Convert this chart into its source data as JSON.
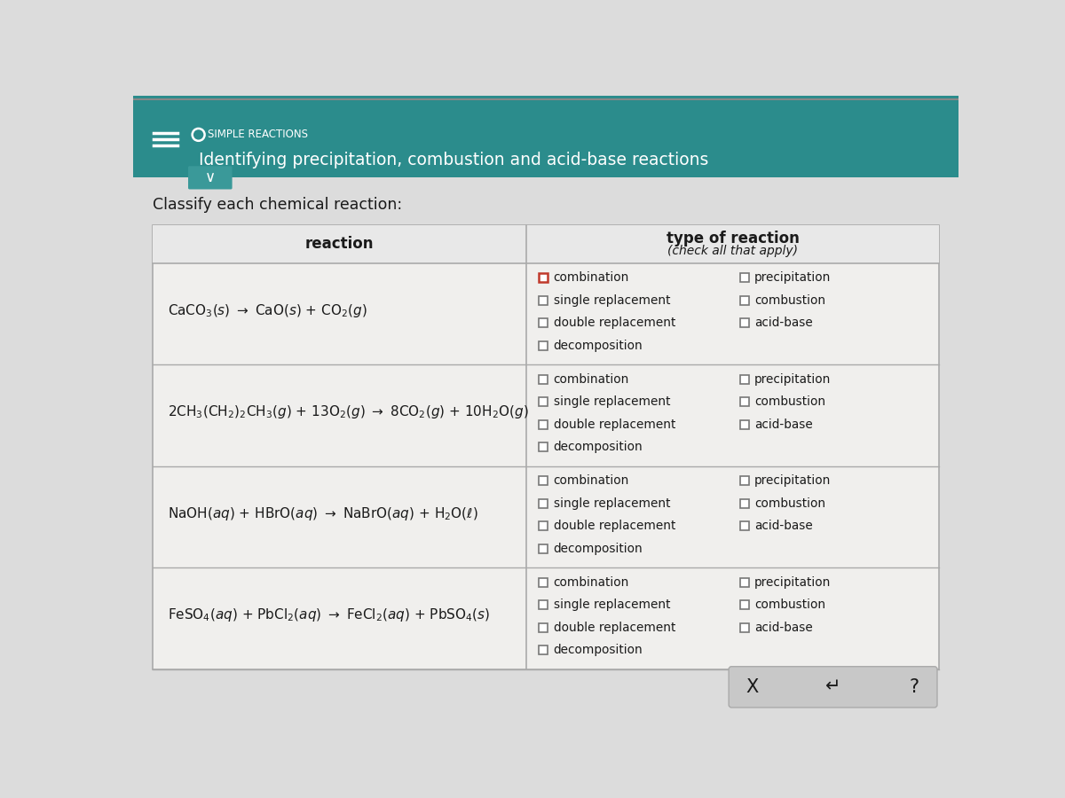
{
  "header_bg": "#2b8c8c",
  "header_text_color": "#ffffff",
  "title_small": "SIMPLE REACTIONS",
  "title_large": "Identifying precipitation, combustion and acid-base reactions",
  "classify_text": "Classify each chemical reaction:",
  "col1_header": "reaction",
  "col2_header_line1": "type of reaction",
  "col2_header_line2": "(check all that apply)",
  "bg_color": "#dcdcdc",
  "table_bg": "#f0efed",
  "table_cell_bg": "#ebebeb",
  "reactions_math": [
    "CaCO$_3$($s$) $\\rightarrow$ CaO($s$) + CO$_2$($g$)",
    "2CH$_3$(CH$_2$)$_2$CH$_3$($g$) + 13O$_2$($g$) $\\rightarrow$ 8CO$_2$($g$) + 10H$_2$O($g$)",
    "NaOH($aq$) + HBrO($aq$) $\\rightarrow$ NaBrO($aq$) + H$_2$O($\\ell$)",
    "FeSO$_4$($aq$) + PbCl$_2$($aq$) $\\rightarrow$ FeCl$_2$($aq$) + PbSO$_4$($s$)"
  ],
  "cb_left_labels": [
    "combination",
    "single replacement",
    "double replacement",
    "decomposition"
  ],
  "cb_right_labels": [
    "precipitation",
    "combustion",
    "acid-base"
  ],
  "bottom_symbols": [
    "X",
    "↵",
    "?"
  ],
  "grid_color": "#aaaaaa",
  "text_color": "#1a1a1a",
  "checkbox_highlight": "#c0392b",
  "header_row_bg": "#e8e8e8",
  "bottom_btn_bg": "#c8c8c8"
}
